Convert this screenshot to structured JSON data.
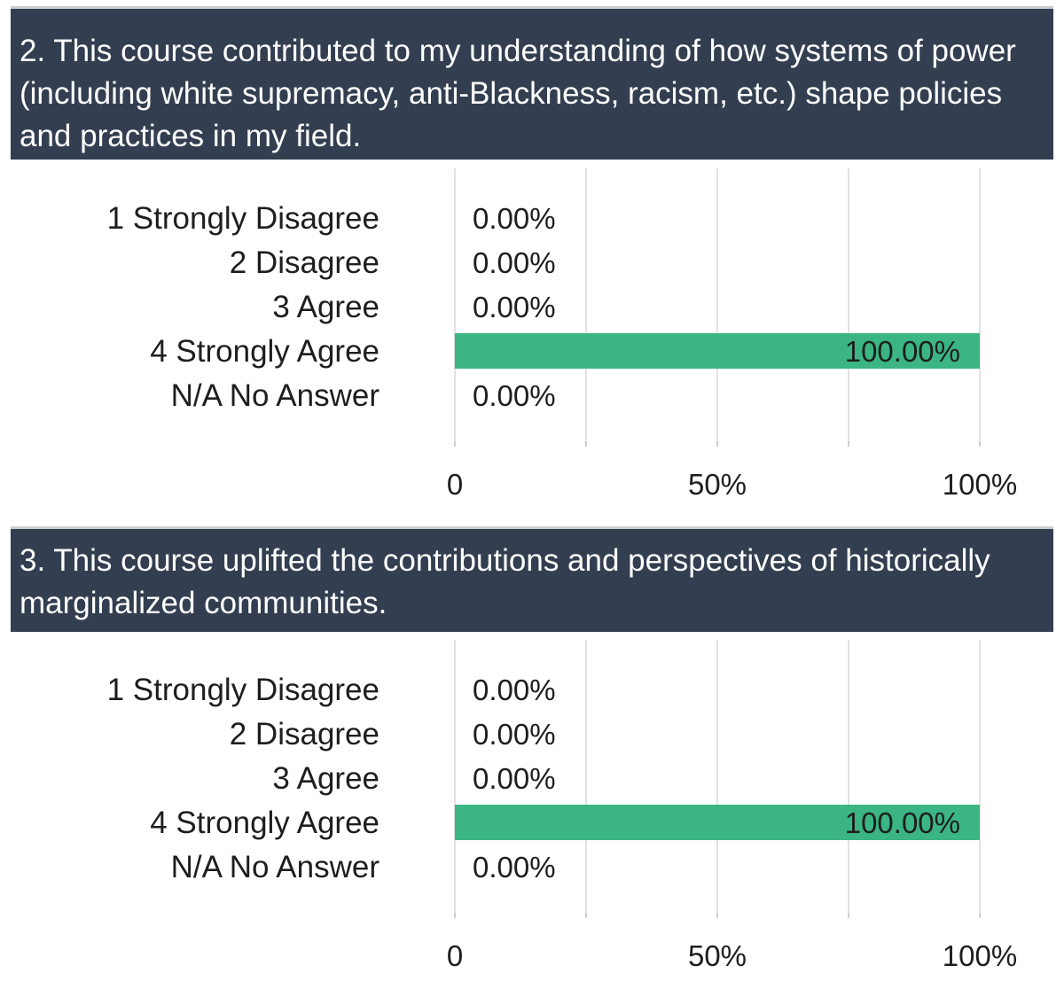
{
  "questions": [
    {
      "title": "2. This course contributed to my understanding of how systems of power (including white supremacy, anti-Blackness, racism, etc.) shape policies and practices in my field."
    },
    {
      "title": "3. This course uplifted the contributions and perspectives of historically marginalized communities."
    }
  ],
  "colors": {
    "bar": "#3bb583",
    "header_bg": "#333f50",
    "grid": "#d9d9d9"
  },
  "chart_data": [
    {
      "type": "bar",
      "orientation": "horizontal",
      "title": "2. This course contributed to my understanding of how systems of power (including white supremacy, anti-Blackness, racism, etc.) shape policies and practices in my field.",
      "categories": [
        "1 Strongly Disagree",
        "2 Disagree",
        "3 Agree",
        "4 Strongly Agree",
        "N/A No Answer"
      ],
      "values": [
        0,
        0,
        0,
        100,
        0
      ],
      "value_labels": [
        "0.00%",
        "0.00%",
        "0.00%",
        "100.00%",
        "0.00%"
      ],
      "xlim": [
        0,
        100
      ],
      "x_ticks": [
        0,
        50,
        100
      ],
      "x_tick_labels": [
        "0",
        "50%",
        "100%"
      ],
      "grid": true
    },
    {
      "type": "bar",
      "orientation": "horizontal",
      "title": "3. This course uplifted the contributions and perspectives of historically marginalized communities.",
      "categories": [
        "1 Strongly Disagree",
        "2 Disagree",
        "3 Agree",
        "4 Strongly Agree",
        "N/A No Answer"
      ],
      "values": [
        0,
        0,
        0,
        100,
        0
      ],
      "value_labels": [
        "0.00%",
        "0.00%",
        "0.00%",
        "100.00%",
        "0.00%"
      ],
      "xlim": [
        0,
        100
      ],
      "x_ticks": [
        0,
        50,
        100
      ],
      "x_tick_labels": [
        "0",
        "50%",
        "100%"
      ],
      "grid": true
    }
  ]
}
